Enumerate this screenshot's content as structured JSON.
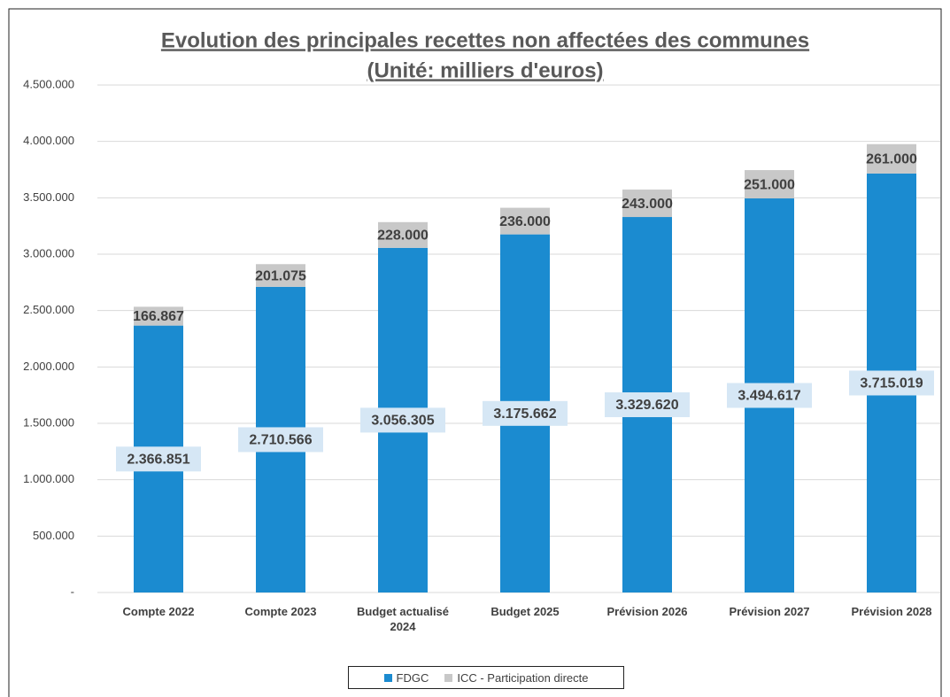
{
  "chart_data": {
    "type": "stacked_bar",
    "title": "Evolution des principales  recettes non affectées des communes",
    "subtitle": "(Unité: milliers d'euros)",
    "categories": [
      "Compte 2022",
      "Compte 2023",
      "Budget actualisé 2024",
      "Budget 2025",
      "Prévision 2026",
      "Prévision 2027",
      "Prévision 2028"
    ],
    "series": [
      {
        "name": "FDGC",
        "color": "#1b8bd0",
        "values": [
          2366851,
          2710566,
          3056305,
          3175662,
          3329620,
          3494617,
          3715019
        ],
        "value_labels": [
          "2.366.851",
          "2.710.566",
          "3.056.305",
          "3.175.662",
          "3.329.620",
          "3.494.617",
          "3.715.019"
        ]
      },
      {
        "name": "ICC - Participation directe",
        "color": "#c8c8c8",
        "values": [
          166867,
          201075,
          228000,
          236000,
          243000,
          251000,
          261000
        ],
        "value_labels": [
          "166.867",
          "201.075",
          "228.000",
          "236.000",
          "243.000",
          "251.000",
          "261.000"
        ]
      }
    ],
    "ylim": [
      0,
      4500000
    ],
    "yticks": [
      {
        "value": 0,
        "label": "-"
      },
      {
        "value": 500000,
        "label": "500.000"
      },
      {
        "value": 1000000,
        "label": "1.000.000"
      },
      {
        "value": 1500000,
        "label": "1.500.000"
      },
      {
        "value": 2000000,
        "label": "2.000.000"
      },
      {
        "value": 2500000,
        "label": "2.500.000"
      },
      {
        "value": 3000000,
        "label": "3.000.000"
      },
      {
        "value": 3500000,
        "label": "3.500.000"
      },
      {
        "value": 4000000,
        "label": "4.000.000"
      },
      {
        "value": 4500000,
        "label": "4.500.000"
      }
    ],
    "grid": true,
    "legend": "bottom"
  }
}
